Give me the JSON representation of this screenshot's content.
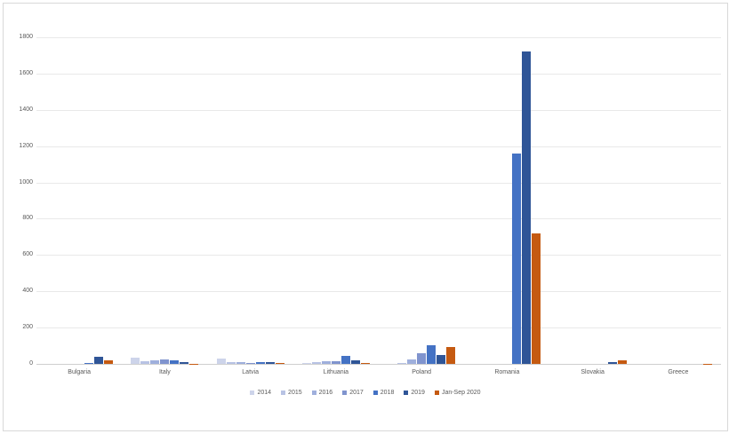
{
  "chart_data": {
    "type": "bar",
    "title": "",
    "xlabel": "",
    "ylabel": "",
    "ylim": [
      0,
      1800
    ],
    "yticks": [
      0,
      200,
      400,
      600,
      800,
      1000,
      1200,
      1400,
      1600,
      1800
    ],
    "grid": true,
    "legend_position": "bottom",
    "categories": [
      "Bulgaria",
      "Italy",
      "Latvia",
      "Lithuania",
      "Poland",
      "Romania",
      "Slovakia",
      "Greece"
    ],
    "series": [
      {
        "name": "2014",
        "color": "#cdd4ea",
        "values": [
          0,
          35,
          30,
          5,
          0,
          0,
          0,
          0
        ]
      },
      {
        "name": "2015",
        "color": "#b8c3e4",
        "values": [
          0,
          15,
          8,
          10,
          5,
          0,
          0,
          0
        ]
      },
      {
        "name": "2016",
        "color": "#9fafdc",
        "values": [
          0,
          20,
          8,
          15,
          25,
          0,
          0,
          0
        ]
      },
      {
        "name": "2017",
        "color": "#8094ce",
        "values": [
          0,
          25,
          5,
          15,
          60,
          0,
          0,
          0
        ]
      },
      {
        "name": "2018",
        "color": "#4472c4",
        "values": [
          5,
          20,
          12,
          45,
          105,
          1160,
          0,
          0
        ]
      },
      {
        "name": "2019",
        "color": "#2f5597",
        "values": [
          40,
          10,
          12,
          18,
          50,
          1720,
          10,
          0
        ]
      },
      {
        "name": "Jan-Sep 2020",
        "color": "#c55a11",
        "values": [
          20,
          2,
          3,
          5,
          95,
          720,
          18,
          2
        ]
      }
    ],
    "colors": {
      "grid": "#e9e9e9",
      "axis_line": "#cfcfcf",
      "text": "#595959",
      "background": "#ffffff"
    }
  }
}
